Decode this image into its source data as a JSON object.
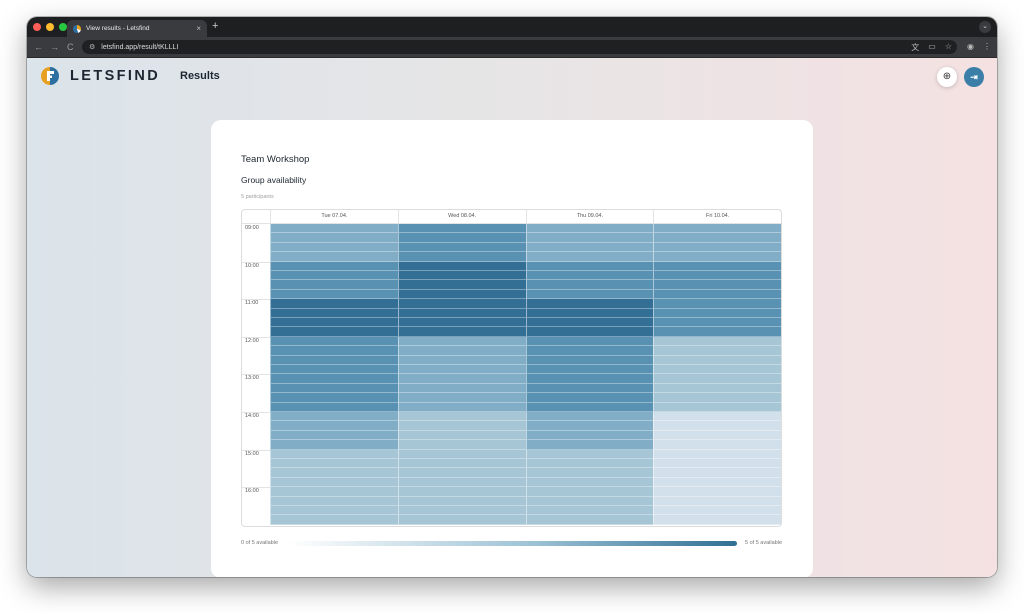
{
  "browser": {
    "tab_title": "View results - Letsfind",
    "tab_close": "×",
    "new_tab": "+",
    "url": "letsfind.app/result/tKLLLI",
    "nav": {
      "back": "←",
      "forward": "→",
      "reload": "C"
    },
    "icons": [
      "translate-icon",
      "cast-icon",
      "star-icon",
      "profile-icon",
      "menu-icon"
    ]
  },
  "app": {
    "brand": "LETSFIND",
    "page_title": "Results",
    "brand_colors": {
      "orange": "#e8a020",
      "blue": "#2d6fa0",
      "accent_button": "#3b7ea8"
    },
    "buttons": {
      "language": "language-icon",
      "login": "login-icon"
    }
  },
  "card": {
    "event_title": "Team Workshop",
    "section_title": "Group availability",
    "participants_label": "5 participants"
  },
  "availability": {
    "max": 5,
    "days": [
      "Tue 07.04.",
      "Wed 08.04.",
      "Thu 09.04.",
      "Fri 10.04."
    ],
    "times": [
      "09:00",
      "10:00",
      "11:00",
      "12:00",
      "13:00",
      "14:00",
      "15:00",
      "16:00"
    ],
    "slot_minutes": 15,
    "counts": [
      [
        3,
        3,
        3,
        3,
        4,
        4,
        4,
        4,
        5,
        5,
        5,
        5,
        4,
        4,
        4,
        4,
        4,
        4,
        4,
        4,
        3,
        3,
        3,
        3,
        2,
        2,
        2,
        2,
        2,
        2,
        2,
        2
      ],
      [
        4,
        4,
        4,
        4,
        5,
        5,
        5,
        5,
        5,
        5,
        5,
        5,
        3,
        3,
        3,
        3,
        3,
        3,
        3,
        3,
        2,
        2,
        2,
        2,
        2,
        2,
        2,
        2,
        2,
        2,
        2,
        2
      ],
      [
        3,
        3,
        3,
        3,
        4,
        4,
        4,
        4,
        5,
        5,
        5,
        5,
        4,
        4,
        4,
        4,
        4,
        4,
        4,
        4,
        3,
        3,
        3,
        3,
        2,
        2,
        2,
        2,
        2,
        2,
        2,
        2
      ],
      [
        3,
        3,
        3,
        3,
        4,
        4,
        4,
        4,
        4,
        4,
        4,
        4,
        2,
        2,
        2,
        2,
        2,
        2,
        2,
        2,
        1,
        1,
        1,
        1,
        1,
        1,
        1,
        1,
        1,
        1,
        1,
        1
      ]
    ],
    "colors": [
      "#ffffff",
      "#d1e0ea",
      "#a6c5d5",
      "#81adc6",
      "#5991b2",
      "#336f94"
    ]
  },
  "legend": {
    "min_label": "0 of 5 available",
    "max_label": "5 of 5 available"
  }
}
